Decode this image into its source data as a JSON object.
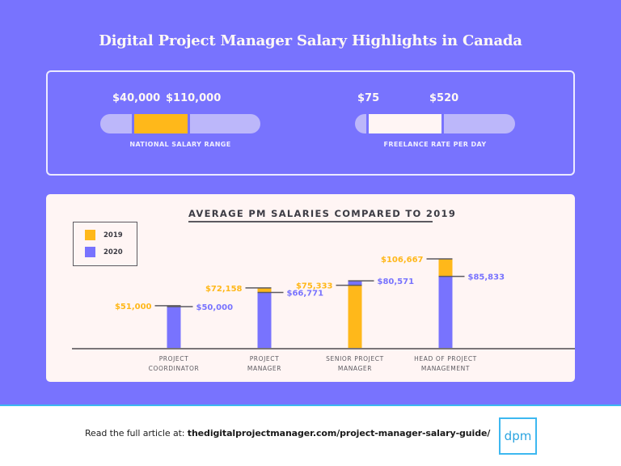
{
  "header": {
    "title": "Digital Project Manager Salary Highlights in Canada"
  },
  "ranges": [
    {
      "id": "national-salary",
      "caption": "NATIONAL SALARY RANGE",
      "low_label": "$40,000",
      "high_label": "$110,000",
      "low": 40000,
      "high": 110000,
      "fill_color": "#ffb81a"
    },
    {
      "id": "freelance-rate",
      "caption": "FREELANCE RATE PER DAY",
      "low_label": "$75",
      "high_label": "$520",
      "low": 75,
      "high": 520,
      "fill_color": "#fff5f4"
    }
  ],
  "colors": {
    "background": "#7873fe",
    "series_2019": "#ffb81a",
    "series_2020": "#7873fe",
    "panel": "#fff5f4",
    "axis": "#7a7578",
    "accent_line": "#3db8f0"
  },
  "chart_data": {
    "type": "bar",
    "title": "AVERAGE PM SALARIES COMPARED TO 2019",
    "xlabel": "",
    "ylabel": "",
    "legend": {
      "placement": "top-left",
      "entries": [
        "2019",
        "2020"
      ]
    },
    "grid": false,
    "categories": [
      [
        "PROJECT",
        "COORDINATOR"
      ],
      [
        "PROJECT",
        "MANAGER"
      ],
      [
        "SENIOR PROJECT",
        "MANAGER"
      ],
      [
        "HEAD OF PROJECT",
        "MANAGEMENT"
      ]
    ],
    "series": [
      {
        "name": "2019",
        "values": [
          51000,
          72158,
          75333,
          106667
        ],
        "labels": [
          "$51,000",
          "$72,158",
          "$75,333",
          "$106,667"
        ]
      },
      {
        "name": "2020",
        "values": [
          50000,
          66771,
          80571,
          85833
        ],
        "labels": [
          "$50,000",
          "$66,771",
          "$80,571",
          "$85,833"
        ]
      }
    ],
    "ylim": [
      0,
      106667
    ]
  },
  "footer": {
    "prefix": "Read the full article at: ",
    "link": "thedigitalprojectmanager.com/project-manager-salary-guide/",
    "logo_text": "dpm"
  }
}
